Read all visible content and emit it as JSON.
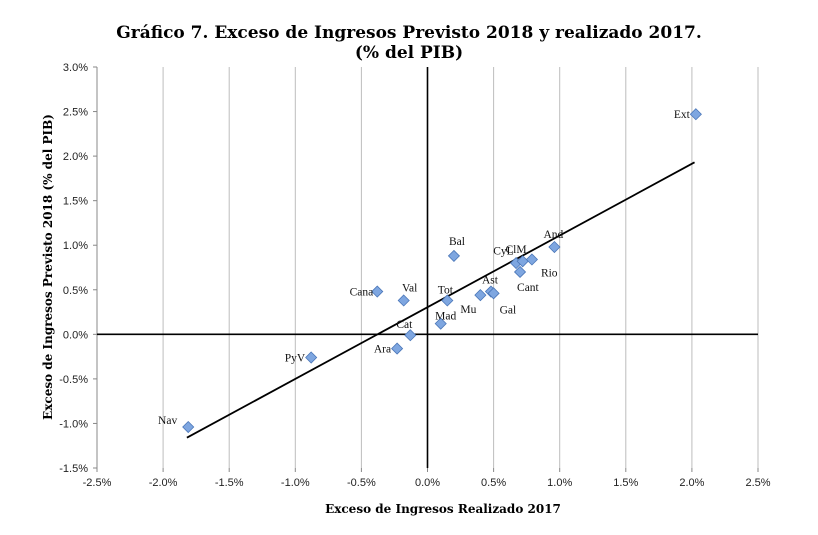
{
  "chart_data": {
    "type": "scatter",
    "title": "Gráfico 7. Exceso de Ingresos Previsto 2018 y realizado 2017.",
    "subtitle": "(% del PIB)",
    "xlabel": "Exceso de Ingresos Realizado 2017",
    "ylabel": "Exceso de Ingresos Previsto 2018 (% del PIB)",
    "xlim": [
      -0.025,
      0.025
    ],
    "ylim": [
      -0.015,
      0.03
    ],
    "x_ticks": [
      -0.025,
      -0.02,
      -0.015,
      -0.01,
      -0.005,
      0.0,
      0.005,
      0.01,
      0.015,
      0.02,
      0.025
    ],
    "x_tick_labels": [
      "-2.5%",
      "-2.0%",
      "-1.5%",
      "-1.0%",
      "-0.5%",
      "0.0%",
      "0.5%",
      "1.0%",
      "1.5%",
      "2.0%",
      "2.5%"
    ],
    "y_ticks": [
      -0.015,
      -0.01,
      -0.005,
      0.0,
      0.005,
      0.01,
      0.015,
      0.02,
      0.025,
      0.03
    ],
    "y_tick_labels": [
      "-1.5%",
      "-1.0%",
      "-0.5%",
      "0.0%",
      "0.5%",
      "1.0%",
      "1.5%",
      "2.0%",
      "2.5%",
      "3.0%"
    ],
    "grid": "vertical",
    "legend": "none",
    "marker_color": "#7ea6e0",
    "marker_stroke": "#4a76b8",
    "points": [
      {
        "label": "Ext",
        "x": 0.0203,
        "y": 0.0247
      },
      {
        "label": "And",
        "x": 0.0096,
        "y": 0.0098
      },
      {
        "label": "ClM",
        "x": 0.0067,
        "y": 0.008
      },
      {
        "label": "CyL",
        "x": 0.0072,
        "y": 0.0082
      },
      {
        "label": "Rio",
        "x": 0.0079,
        "y": 0.0084
      },
      {
        "label": "Cant",
        "x": 0.007,
        "y": 0.007
      },
      {
        "label": "Bal",
        "x": 0.002,
        "y": 0.0088
      },
      {
        "label": "Ast",
        "x": 0.0048,
        "y": 0.0048
      },
      {
        "label": "Mu",
        "x": 0.004,
        "y": 0.0044
      },
      {
        "label": "Gal",
        "x": 0.005,
        "y": 0.0046
      },
      {
        "label": "Tot",
        "x": 0.0015,
        "y": 0.0038
      },
      {
        "label": "Mad",
        "x": 0.001,
        "y": 0.0012
      },
      {
        "label": "Cana",
        "x": -0.0038,
        "y": 0.0048
      },
      {
        "label": "Val",
        "x": -0.0018,
        "y": 0.0038
      },
      {
        "label": "Cat",
        "x": -0.0013,
        "y": -0.0001
      },
      {
        "label": "Ara",
        "x": -0.0023,
        "y": -0.0016
      },
      {
        "label": "PyV",
        "x": -0.0088,
        "y": -0.0026
      },
      {
        "label": "Nav",
        "x": -0.0181,
        "y": -0.0104
      }
    ],
    "trendline": {
      "x": [
        -0.0182,
        0.0202
      ],
      "y": [
        -0.0116,
        0.0193
      ]
    }
  }
}
